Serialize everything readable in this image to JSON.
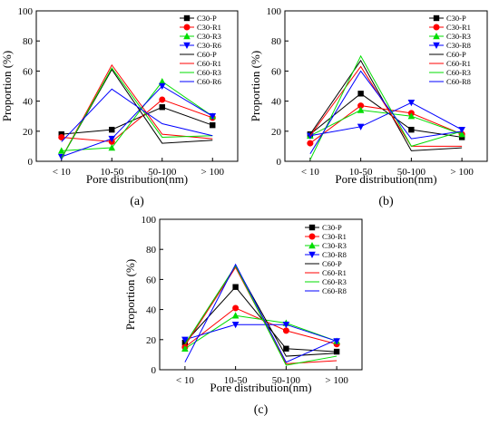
{
  "chart_data": [
    {
      "type": "line",
      "panel_label": "(a)",
      "categories": [
        "< 10",
        "10-50",
        "50-100",
        "> 100"
      ],
      "xlabel": "Pore distribution(nm)",
      "ylabel": "Proportion (%)",
      "ylim": [
        0,
        100
      ],
      "yticks": [
        0,
        20,
        40,
        60,
        80,
        100
      ],
      "legend_position": "top-right",
      "series": [
        {
          "name": "C30-P",
          "color": "#000000",
          "marker": "square",
          "values": [
            18,
            21,
            36,
            24
          ]
        },
        {
          "name": "C30-R1",
          "color": "#ff0000",
          "marker": "circle",
          "values": [
            16,
            13,
            41,
            29
          ]
        },
        {
          "name": "C30-R3",
          "color": "#00dd00",
          "marker": "triangle",
          "values": [
            7,
            9,
            53,
            30
          ]
        },
        {
          "name": "C30-R6",
          "color": "#0000ff",
          "marker": "tri-down",
          "values": [
            3,
            15,
            50,
            30
          ]
        },
        {
          "name": "C60-P",
          "color": "#000000",
          "marker": "none",
          "values": [
            2,
            61,
            12,
            14
          ]
        },
        {
          "name": "C60-R1",
          "color": "#ff0000",
          "marker": "none",
          "values": [
            2,
            64,
            18,
            15
          ]
        },
        {
          "name": "C60-R3",
          "color": "#00dd00",
          "marker": "none",
          "values": [
            2,
            62,
            16,
            17
          ]
        },
        {
          "name": "C60-R6",
          "color": "#0000ff",
          "marker": "none",
          "values": [
            13,
            48,
            25,
            17
          ]
        }
      ]
    },
    {
      "type": "line",
      "panel_label": "(b)",
      "categories": [
        "< 10",
        "10-50",
        "50-100",
        "> 100"
      ],
      "xlabel": "Pore distribution(nm)",
      "ylabel": "Proportion (%)",
      "ylim": [
        0,
        100
      ],
      "yticks": [
        0,
        20,
        40,
        60,
        80,
        100
      ],
      "legend_position": "top-right",
      "series": [
        {
          "name": "C30-P",
          "color": "#000000",
          "marker": "square",
          "values": [
            18,
            45,
            21,
            16
          ]
        },
        {
          "name": "C30-R1",
          "color": "#ff0000",
          "marker": "circle",
          "values": [
            12,
            37,
            32,
            18
          ]
        },
        {
          "name": "C30-R3",
          "color": "#00dd00",
          "marker": "triangle",
          "values": [
            17,
            34,
            30,
            18
          ]
        },
        {
          "name": "C30-R8",
          "color": "#0000ff",
          "marker": "tri-down",
          "values": [
            17,
            23,
            39,
            21
          ]
        },
        {
          "name": "C60-P",
          "color": "#000000",
          "marker": "none",
          "values": [
            18,
            67,
            7,
            9
          ]
        },
        {
          "name": "C60-R1",
          "color": "#ff0000",
          "marker": "none",
          "values": [
            17,
            63,
            10,
            10
          ]
        },
        {
          "name": "C60-R3",
          "color": "#00dd00",
          "marker": "none",
          "values": [
            1,
            70,
            10,
            20
          ]
        },
        {
          "name": "C60-R8",
          "color": "#0000ff",
          "marker": "none",
          "values": [
            5,
            60,
            15,
            20
          ]
        }
      ]
    },
    {
      "type": "line",
      "panel_label": "(c)",
      "categories": [
        "< 10",
        "10-50",
        "50-100",
        "> 100"
      ],
      "xlabel": "Pore distribution(nm)",
      "ylabel": "Proportion (%)",
      "ylim": [
        0,
        100
      ],
      "yticks": [
        0,
        20,
        40,
        60,
        80,
        100
      ],
      "legend_position": "top-right",
      "series": [
        {
          "name": "C30-P",
          "color": "#000000",
          "marker": "square",
          "values": [
            18,
            55,
            14,
            12
          ]
        },
        {
          "name": "C30-R1",
          "color": "#ff0000",
          "marker": "circle",
          "values": [
            15,
            41,
            26,
            17
          ]
        },
        {
          "name": "C30-R3",
          "color": "#00dd00",
          "marker": "triangle",
          "values": [
            14,
            36,
            31,
            19
          ]
        },
        {
          "name": "C30-R8",
          "color": "#0000ff",
          "marker": "tri-down",
          "values": [
            20,
            30,
            30,
            19
          ]
        },
        {
          "name": "C60-P",
          "color": "#000000",
          "marker": "none",
          "values": [
            17,
            69,
            9,
            11
          ]
        },
        {
          "name": "C60-R1",
          "color": "#ff0000",
          "marker": "none",
          "values": [
            16,
            68,
            4,
            6
          ]
        },
        {
          "name": "C60-R3",
          "color": "#00dd00",
          "marker": "none",
          "values": [
            17,
            69,
            3,
            9
          ]
        },
        {
          "name": "C60-R8",
          "color": "#0000ff",
          "marker": "none",
          "values": [
            5,
            70,
            5,
            20
          ]
        }
      ]
    }
  ]
}
